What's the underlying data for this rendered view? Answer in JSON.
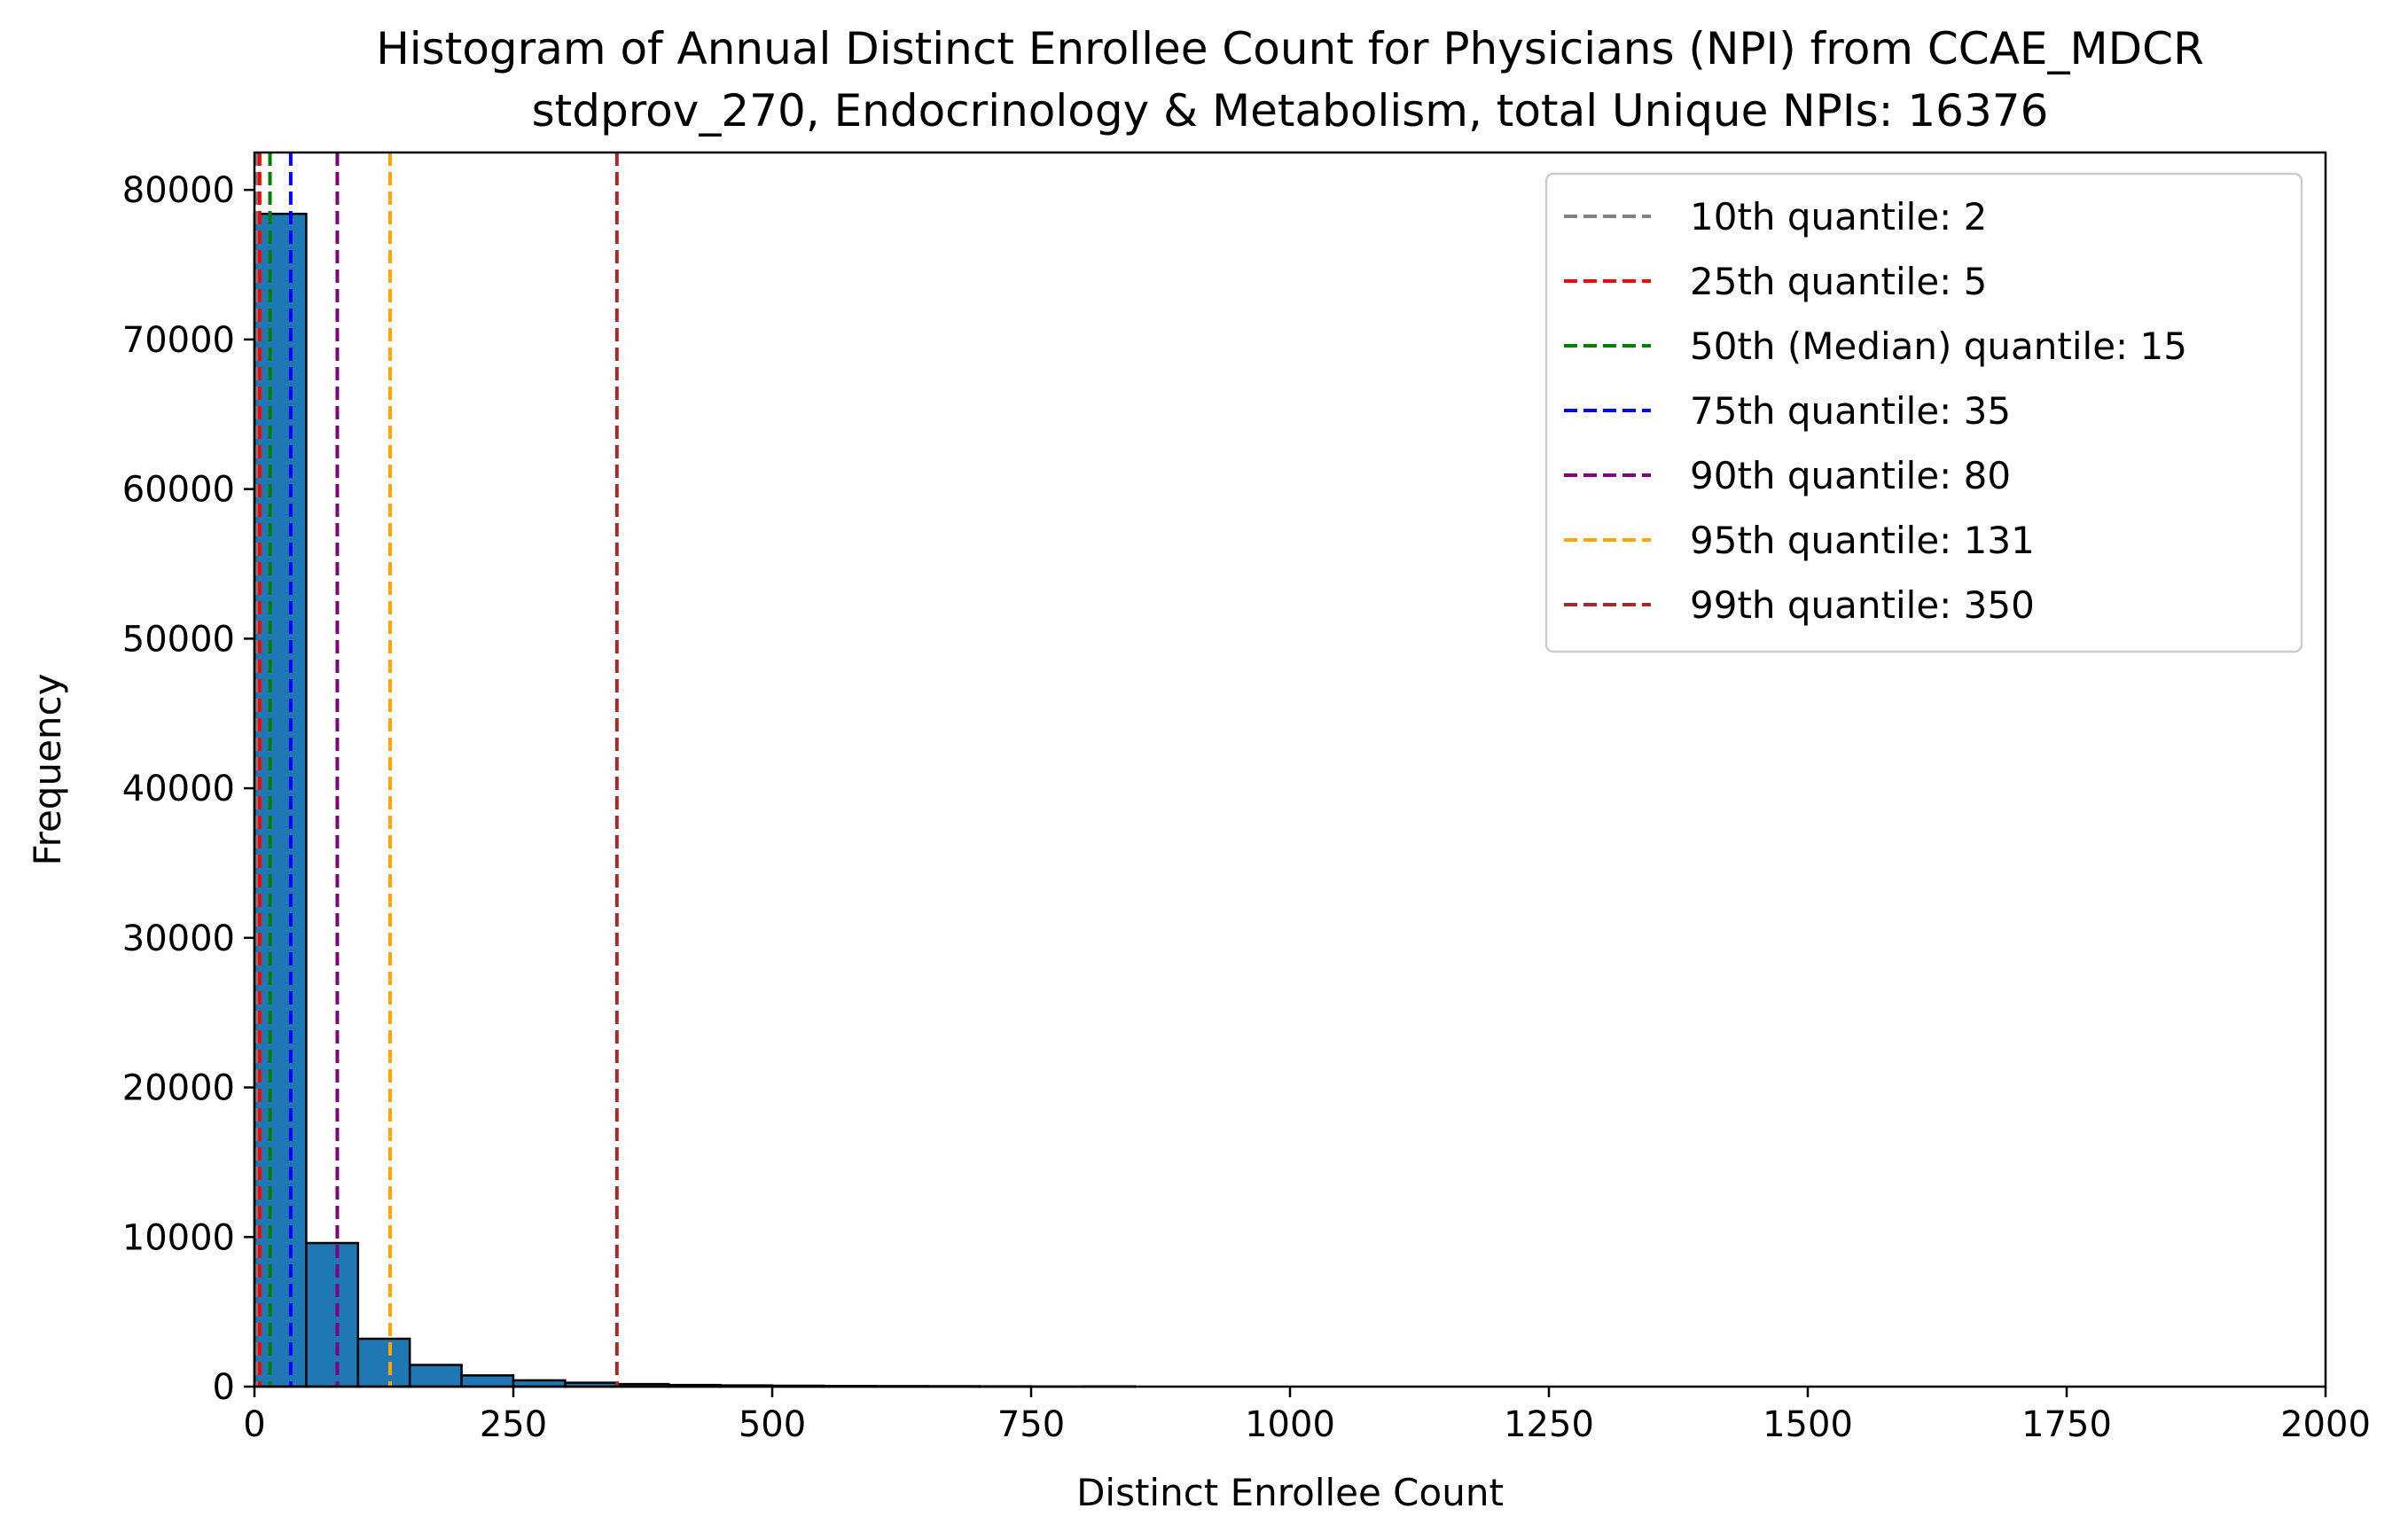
{
  "chart_data": {
    "type": "bar",
    "title": "Histogram of Annual Distinct Enrollee Count for Physicians (NPI) from CCAE_MDCR",
    "subtitle": "stdprov_270, Endocrinology & Metabolism, total Unique NPIs: 16376",
    "xlabel": "Distinct Enrollee Count",
    "ylabel": "Frequency",
    "xlim": [
      0,
      2000
    ],
    "ylim": [
      0,
      82500
    ],
    "xticks": [
      0,
      250,
      500,
      750,
      1000,
      1250,
      1500,
      1750,
      2000
    ],
    "yticks": [
      0,
      10000,
      20000,
      30000,
      40000,
      50000,
      60000,
      70000,
      80000
    ],
    "grid": false,
    "legend_position": "top-right",
    "bar_color": "#1f77b4",
    "bar_edge_color": "#000000",
    "bins": [
      {
        "x0": 0,
        "x1": 50,
        "count": 78400
      },
      {
        "x0": 50,
        "x1": 100,
        "count": 9600
      },
      {
        "x0": 100,
        "x1": 150,
        "count": 3200
      },
      {
        "x0": 150,
        "x1": 200,
        "count": 1450
      },
      {
        "x0": 200,
        "x1": 250,
        "count": 750
      },
      {
        "x0": 250,
        "x1": 300,
        "count": 420
      },
      {
        "x0": 300,
        "x1": 350,
        "count": 260
      },
      {
        "x0": 350,
        "x1": 400,
        "count": 170
      },
      {
        "x0": 400,
        "x1": 450,
        "count": 110
      },
      {
        "x0": 450,
        "x1": 500,
        "count": 80
      },
      {
        "x0": 500,
        "x1": 550,
        "count": 60
      },
      {
        "x0": 550,
        "x1": 600,
        "count": 45
      },
      {
        "x0": 600,
        "x1": 650,
        "count": 35
      },
      {
        "x0": 650,
        "x1": 700,
        "count": 28
      },
      {
        "x0": 700,
        "x1": 750,
        "count": 20
      },
      {
        "x0": 750,
        "x1": 800,
        "count": 5
      },
      {
        "x0": 800,
        "x1": 850,
        "count": 15
      }
    ],
    "quantile_lines": [
      {
        "label": "10th quantile: 2",
        "value": 2,
        "color": "#808080"
      },
      {
        "label": "25th quantile: 5",
        "value": 5,
        "color": "#ff0000"
      },
      {
        "label": "50th (Median) quantile: 15",
        "value": 15,
        "color": "#008000"
      },
      {
        "label": "75th quantile: 35",
        "value": 35,
        "color": "#0000ff"
      },
      {
        "label": "90th quantile: 80",
        "value": 80,
        "color": "#800080"
      },
      {
        "label": "95th quantile: 131",
        "value": 131,
        "color": "#ffa500"
      },
      {
        "label": "99th quantile: 350",
        "value": 350,
        "color": "#a52a2a"
      }
    ]
  }
}
